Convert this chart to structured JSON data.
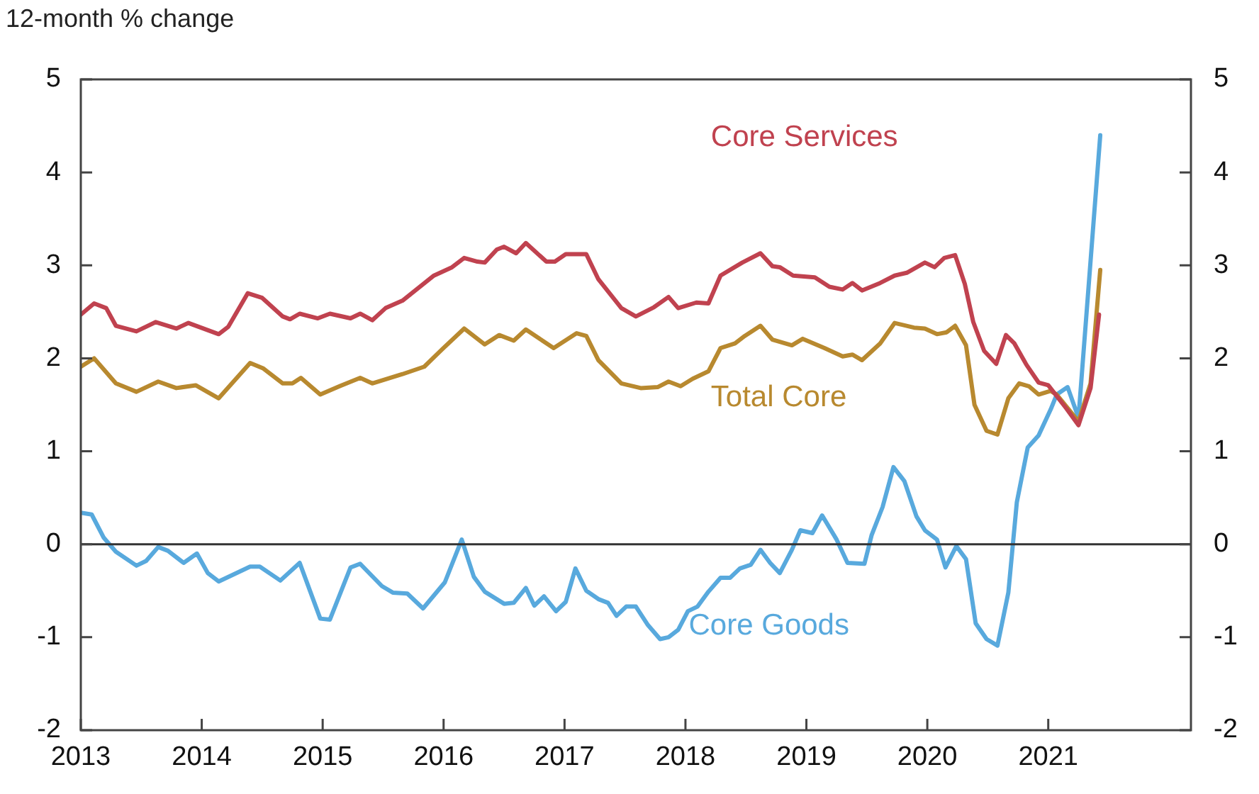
{
  "chart_data": {
    "type": "line",
    "ylabel": "12-month % change",
    "xlim": [
      2013,
      2022.18
    ],
    "xticks": [
      2013,
      2014,
      2015,
      2016,
      2017,
      2018,
      2019,
      2020,
      2021
    ],
    "ylim": [
      -2,
      5
    ],
    "yticks": [
      -2,
      -1,
      0,
      1,
      2,
      3,
      4,
      5
    ],
    "y2lim": [
      -2,
      5
    ],
    "y2ticks": [
      -2,
      -1,
      0,
      1,
      2,
      3,
      4,
      5
    ],
    "grid": false,
    "legend": false,
    "marker": "none",
    "line_style": "solid",
    "ref_lines": [
      {
        "axis": "y",
        "value": 0,
        "color": "#333333"
      }
    ],
    "series": [
      {
        "name": "Core Services",
        "color": "#c0424f",
        "x": [
          2013.0,
          2013.11,
          2013.21,
          2013.29,
          2013.46,
          2013.62,
          2013.79,
          2013.89,
          2014.14,
          2014.22,
          2014.38,
          2014.5,
          2014.67,
          2014.73,
          2014.81,
          2014.96,
          2015.06,
          2015.23,
          2015.31,
          2015.41,
          2015.52,
          2015.66,
          2015.92,
          2016.07,
          2016.17,
          2016.28,
          2016.34,
          2016.44,
          2016.5,
          2016.6,
          2016.68,
          2016.85,
          2016.92,
          2017.01,
          2017.18,
          2017.28,
          2017.47,
          2017.59,
          2017.74,
          2017.86,
          2017.94,
          2018.09,
          2018.19,
          2018.29,
          2018.47,
          2018.62,
          2018.72,
          2018.78,
          2018.89,
          2019.07,
          2019.19,
          2019.3,
          2019.38,
          2019.46,
          2019.61,
          2019.73,
          2019.83,
          2019.98,
          2020.06,
          2020.14,
          2020.23,
          2020.31,
          2020.38,
          2020.47,
          2020.57,
          2020.65,
          2020.72,
          2020.82,
          2020.92,
          2021.0,
          2021.15,
          2021.25,
          2021.35,
          2021.42
        ],
        "values": [
          2.47,
          2.59,
          2.54,
          2.35,
          2.29,
          2.39,
          2.32,
          2.38,
          2.26,
          2.34,
          2.7,
          2.65,
          2.45,
          2.42,
          2.48,
          2.43,
          2.48,
          2.43,
          2.48,
          2.41,
          2.54,
          2.62,
          2.89,
          2.98,
          3.08,
          3.04,
          3.03,
          3.17,
          3.2,
          3.13,
          3.24,
          3.04,
          3.04,
          3.12,
          3.12,
          2.85,
          2.54,
          2.45,
          2.55,
          2.66,
          2.54,
          2.6,
          2.59,
          2.89,
          3.03,
          3.13,
          2.99,
          2.98,
          2.89,
          2.87,
          2.77,
          2.74,
          2.81,
          2.73,
          2.81,
          2.89,
          2.92,
          3.03,
          2.98,
          3.08,
          3.11,
          2.8,
          2.39,
          2.08,
          1.94,
          2.25,
          2.16,
          1.93,
          1.74,
          1.71,
          1.46,
          1.28,
          1.68,
          2.47
        ]
      },
      {
        "name": "Total Core",
        "color": "#b8892f",
        "x": [
          2013.0,
          2013.11,
          2013.29,
          2013.46,
          2013.64,
          2013.79,
          2013.95,
          2014.14,
          2014.4,
          2014.51,
          2014.67,
          2014.75,
          2014.82,
          2014.98,
          2015.14,
          2015.31,
          2015.41,
          2015.66,
          2015.84,
          2015.99,
          2016.17,
          2016.34,
          2016.46,
          2016.58,
          2016.68,
          2016.91,
          2017.1,
          2017.18,
          2017.28,
          2017.47,
          2017.63,
          2017.77,
          2017.86,
          2017.96,
          2018.06,
          2018.19,
          2018.29,
          2018.41,
          2018.49,
          2018.62,
          2018.72,
          2018.88,
          2018.97,
          2019.15,
          2019.3,
          2019.38,
          2019.46,
          2019.61,
          2019.73,
          2019.89,
          2019.98,
          2020.08,
          2020.16,
          2020.23,
          2020.32,
          2020.39,
          2020.49,
          2020.58,
          2020.67,
          2020.76,
          2020.84,
          2020.92,
          2021.02,
          2021.07,
          2021.17,
          2021.25,
          2021.35,
          2021.43
        ],
        "values": [
          1.91,
          2.0,
          1.73,
          1.64,
          1.75,
          1.68,
          1.71,
          1.57,
          1.95,
          1.89,
          1.73,
          1.73,
          1.79,
          1.61,
          1.7,
          1.79,
          1.73,
          1.83,
          1.91,
          2.1,
          2.32,
          2.15,
          2.25,
          2.19,
          2.31,
          2.11,
          2.27,
          2.24,
          1.98,
          1.73,
          1.68,
          1.69,
          1.75,
          1.7,
          1.78,
          1.86,
          2.11,
          2.16,
          2.24,
          2.35,
          2.2,
          2.14,
          2.21,
          2.11,
          2.02,
          2.04,
          1.98,
          2.16,
          2.38,
          2.33,
          2.32,
          2.26,
          2.28,
          2.35,
          2.14,
          1.5,
          1.22,
          1.18,
          1.57,
          1.73,
          1.7,
          1.61,
          1.65,
          1.61,
          1.45,
          1.32,
          1.73,
          2.95
        ]
      },
      {
        "name": "Core Goods",
        "color": "#58a9dd",
        "x": [
          2013.0,
          2013.09,
          2013.19,
          2013.29,
          2013.46,
          2013.54,
          2013.64,
          2013.72,
          2013.85,
          2013.96,
          2014.05,
          2014.14,
          2014.4,
          2014.48,
          2014.65,
          2014.81,
          2014.98,
          2015.06,
          2015.23,
          2015.31,
          2015.49,
          2015.58,
          2015.7,
          2015.83,
          2016.01,
          2016.15,
          2016.25,
          2016.34,
          2016.5,
          2016.58,
          2016.68,
          2016.75,
          2016.83,
          2016.93,
          2017.01,
          2017.09,
          2017.18,
          2017.28,
          2017.36,
          2017.43,
          2017.51,
          2017.59,
          2017.69,
          2017.79,
          2017.86,
          2017.94,
          2018.02,
          2018.1,
          2018.19,
          2018.29,
          2018.37,
          2018.45,
          2018.54,
          2018.62,
          2018.7,
          2018.78,
          2018.88,
          2018.95,
          2019.05,
          2019.13,
          2019.25,
          2019.34,
          2019.48,
          2019.54,
          2019.63,
          2019.72,
          2019.81,
          2019.91,
          2019.98,
          2020.08,
          2020.15,
          2020.24,
          2020.32,
          2020.4,
          2020.49,
          2020.58,
          2020.67,
          2020.74,
          2020.83,
          2020.92,
          2021.02,
          2021.07,
          2021.16,
          2021.25,
          2021.43
        ],
        "values": [
          0.34,
          0.32,
          0.07,
          -0.08,
          -0.23,
          -0.18,
          -0.03,
          -0.07,
          -0.2,
          -0.1,
          -0.31,
          -0.4,
          -0.24,
          -0.24,
          -0.39,
          -0.2,
          -0.8,
          -0.81,
          -0.25,
          -0.21,
          -0.45,
          -0.52,
          -0.53,
          -0.69,
          -0.41,
          0.05,
          -0.35,
          -0.51,
          -0.64,
          -0.63,
          -0.47,
          -0.66,
          -0.56,
          -0.72,
          -0.62,
          -0.26,
          -0.5,
          -0.59,
          -0.63,
          -0.77,
          -0.67,
          -0.67,
          -0.87,
          -1.02,
          -1.0,
          -0.92,
          -0.72,
          -0.67,
          -0.51,
          -0.36,
          -0.36,
          -0.26,
          -0.22,
          -0.06,
          -0.2,
          -0.31,
          -0.06,
          0.15,
          0.12,
          0.31,
          0.05,
          -0.2,
          -0.21,
          0.1,
          0.4,
          0.83,
          0.68,
          0.3,
          0.15,
          0.05,
          -0.25,
          -0.02,
          -0.16,
          -0.85,
          -1.02,
          -1.09,
          -0.52,
          0.45,
          1.04,
          1.17,
          1.45,
          1.61,
          1.69,
          1.36,
          4.4
        ]
      }
    ]
  }
}
